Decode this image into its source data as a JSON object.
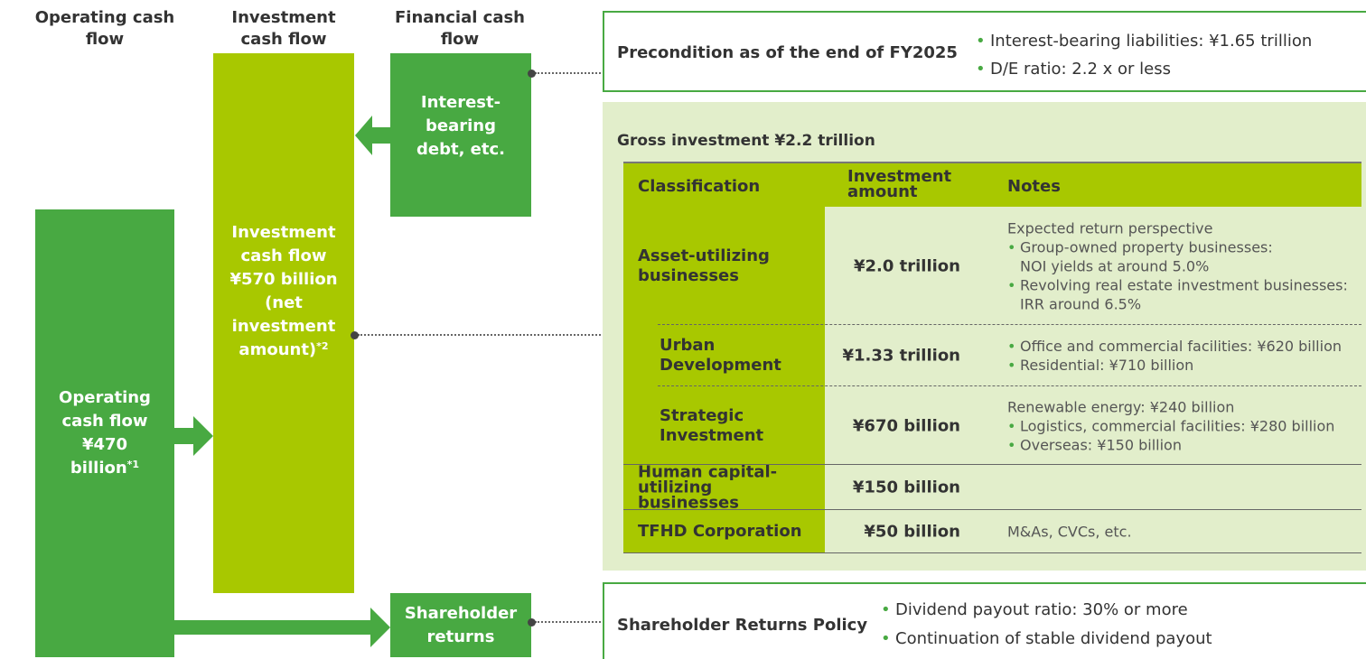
{
  "columns": {
    "operating": "Operating cash flow",
    "investment": "Investment cash flow",
    "financial": "Financial cash flow"
  },
  "boxes": {
    "operating": {
      "label": "Operating cash flow ¥470 billion",
      "note": "*1"
    },
    "investment": {
      "label": "Investment cash flow ¥570 billion (net investment amount)",
      "note": "*2"
    },
    "financial": {
      "label": "Interest-bearing debt, etc."
    },
    "shareholder": {
      "label": "Shareholder returns"
    }
  },
  "precondition": {
    "title": "Precondition as of the end of FY2025",
    "bullets": [
      "Interest-bearing liabilities: ¥1.65 trillion",
      "D/E ratio: 2.2 x or less"
    ]
  },
  "gross_investment": {
    "title": "Gross investment ¥2.2 trillion",
    "headers": [
      "Classification",
      "Investment amount",
      "Notes"
    ],
    "rows": [
      {
        "classification": "Asset-utilizing businesses",
        "amount": "¥2.0 trillion",
        "notes": {
          "intro": "Expected return perspective",
          "bullets": [
            [
              "Group-owned property businesses:",
              "NOI yields at around 5.0%"
            ],
            [
              "Revolving real estate investment businesses:",
              "IRR around 6.5%"
            ]
          ]
        }
      },
      {
        "classification": "Urban Development",
        "amount": "¥1.33 trillion",
        "indent": true,
        "notes": {
          "bullets": [
            [
              "Office and commercial facilities: ¥620 billion"
            ],
            [
              "Residential: ¥710 billion"
            ]
          ]
        }
      },
      {
        "classification": "Strategic Investment",
        "amount": "¥670 billion",
        "indent": true,
        "notes": {
          "intro": "Renewable energy: ¥240 billion",
          "bullets": [
            [
              "Logistics, commercial facilities: ¥280 billion"
            ],
            [
              "Overseas: ¥150 billion"
            ]
          ]
        }
      },
      {
        "classification": "Human capital-utilizing businesses",
        "amount": "¥150 billion"
      },
      {
        "classification": "TFHD Corporation",
        "amount": "¥50 billion",
        "notes": {
          "intro": "M&As, CVCs, etc."
        }
      }
    ]
  },
  "shareholder_policy": {
    "title": "Shareholder Returns Policy",
    "bullets": [
      "Dividend payout ratio: 30% or more",
      "Continuation of stable dividend payout"
    ]
  }
}
